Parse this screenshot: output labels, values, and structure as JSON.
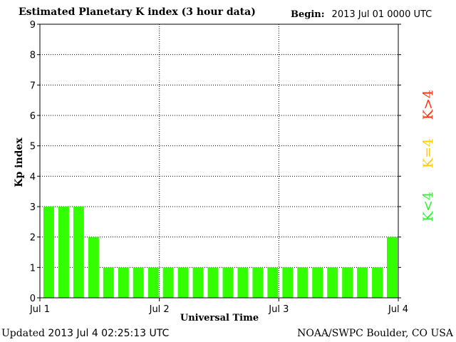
{
  "header": {
    "title": "Estimated Planetary K index (3 hour data)",
    "begin_label": "Begin:",
    "begin_value": "2013 Jul 01 0000 UTC"
  },
  "footer": {
    "updated_label": "Updated",
    "updated_value": "2013 Jul  4 02:25:13 UTC",
    "credit": "NOAA/SWPC Boulder, CO USA"
  },
  "legend": {
    "items": [
      {
        "label": "K<4",
        "color": "#33ee33"
      },
      {
        "label": "K=4",
        "color": "#ffcc00"
      },
      {
        "label": "K>4",
        "color": "#ff3311"
      }
    ]
  },
  "chart_data": {
    "type": "bar",
    "title": "Estimated Planetary K index (3 hour data)",
    "xlabel": "Universal Time",
    "ylabel": "Kp index",
    "ylim": [
      0,
      9
    ],
    "yticks": [
      0,
      1,
      2,
      3,
      4,
      5,
      6,
      7,
      8,
      9
    ],
    "xticks": [
      "Jul 1",
      "Jul 2",
      "Jul 3",
      "Jul 4"
    ],
    "grid": true,
    "bar_color": "#33ff00",
    "values": [
      3,
      3,
      3,
      2,
      1,
      1,
      1,
      1,
      1,
      1,
      1,
      1,
      1,
      1,
      1,
      1,
      1,
      1,
      1,
      1,
      1,
      1,
      1,
      2
    ]
  }
}
